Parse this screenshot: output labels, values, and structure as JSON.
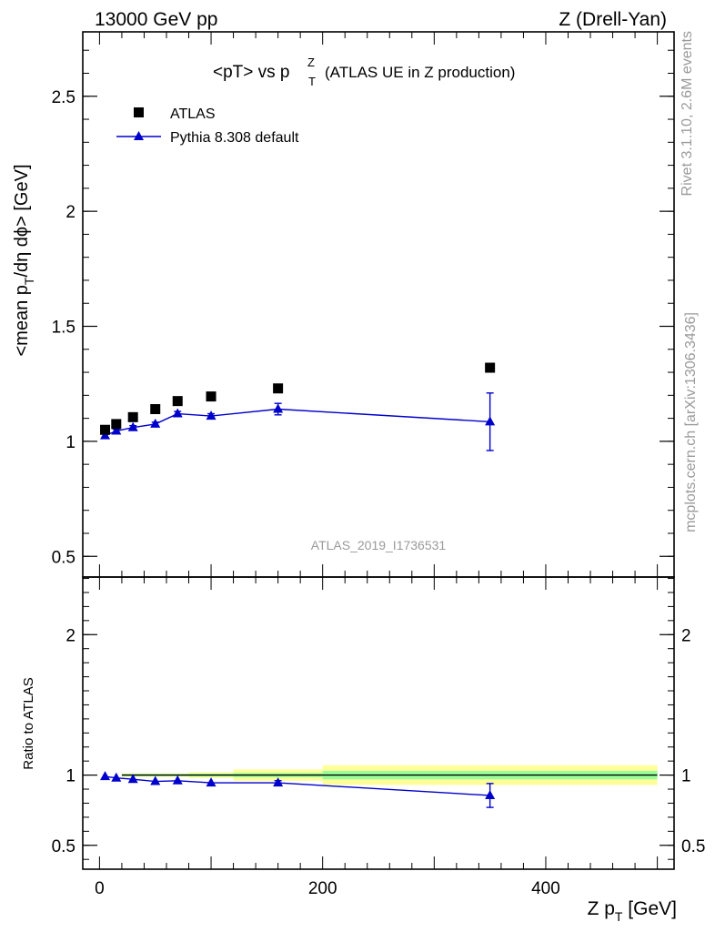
{
  "header": {
    "energy": "13000 GeV pp",
    "process": "Z (Drell-Yan)"
  },
  "side_labels": {
    "rivet": "Rivet 3.1.10,  2.6M events",
    "mcplots": "mcplots.cern.ch [arXiv:1306.3436]"
  },
  "chart_data": [
    {
      "type": "scatter",
      "title_main": "<pT> vs p",
      "title_sup": "Z",
      "title_sub": "T",
      "title_note": "(ATLAS UE in Z production)",
      "ylabel_pre": "<mean p",
      "ylabel_sub": "T",
      "ylabel_post": "/dη dϕ> [GeV]",
      "watermark": "ATLAS_2019_I1736531",
      "xlim": [
        -15,
        515
      ],
      "ylim": [
        0.41,
        2.78
      ],
      "yticks": [
        0.5,
        1,
        1.5,
        2,
        2.5
      ],
      "ytick_labels": [
        "0.5",
        "1",
        "1.5",
        "2",
        "2.5"
      ],
      "legend_position": "top-left",
      "series": [
        {
          "name": "ATLAS",
          "marker": "square",
          "color": "#000000",
          "x": [
            5,
            15,
            30,
            50,
            70,
            100,
            160,
            350
          ],
          "y": [
            1.05,
            1.075,
            1.105,
            1.14,
            1.175,
            1.195,
            1.23,
            1.32
          ]
        },
        {
          "name": "Pythia 8.308 default",
          "marker": "triangle",
          "color": "#0000cc",
          "x": [
            5,
            15,
            30,
            50,
            70,
            100,
            160,
            350
          ],
          "y": [
            1.025,
            1.045,
            1.06,
            1.075,
            1.12,
            1.11,
            1.14,
            1.085
          ],
          "yerr": [
            0.008,
            0.008,
            0.008,
            0.008,
            0.01,
            0.01,
            0.025,
            0.125
          ]
        }
      ]
    },
    {
      "type": "line",
      "ylabel": "Ratio to ATLAS",
      "xlabel_pre": "Z p",
      "xlabel_sub": "T",
      "xlabel_post": " [GeV]",
      "xlim": [
        -15,
        515
      ],
      "ylim": [
        0.33,
        2.41
      ],
      "xticks": [
        0,
        200,
        400
      ],
      "xtick_labels": [
        "0",
        "200",
        "400"
      ],
      "yticks": [
        0.5,
        1,
        2
      ],
      "ytick_labels": [
        "0.5",
        "1",
        "2"
      ],
      "bands": [
        {
          "x0": 20,
          "x1": 40,
          "inner": 0.008,
          "outer": 0.012
        },
        {
          "x0": 40,
          "x1": 60,
          "inner": 0.008,
          "outer": 0.012
        },
        {
          "x0": 60,
          "x1": 80,
          "inner": 0.008,
          "outer": 0.012
        },
        {
          "x0": 80,
          "x1": 120,
          "inner": 0.01,
          "outer": 0.02
        },
        {
          "x0": 120,
          "x1": 200,
          "inner": 0.015,
          "outer": 0.04
        },
        {
          "x0": 200,
          "x1": 500,
          "inner": 0.03,
          "outer": 0.07
        }
      ],
      "series": [
        {
          "name": "Pythia 8.308 default",
          "color": "#0000cc",
          "x": [
            5,
            15,
            30,
            50,
            70,
            100,
            160,
            350
          ],
          "y": [
            0.99,
            0.98,
            0.97,
            0.955,
            0.96,
            0.945,
            0.945,
            0.855
          ],
          "yerr": [
            0.008,
            0.008,
            0.008,
            0.008,
            0.008,
            0.008,
            0.015,
            0.085
          ]
        }
      ]
    }
  ]
}
